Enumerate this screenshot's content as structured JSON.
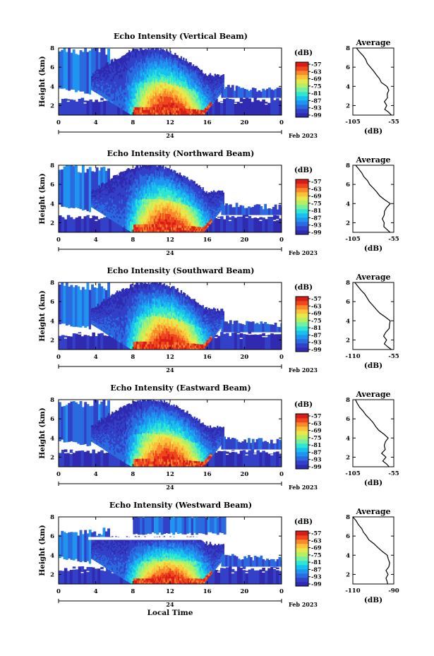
{
  "colorbar": {
    "unit": "(dB)",
    "labels": [
      "-57",
      "-63",
      "-69",
      "-75",
      "-81",
      "-87",
      "-93",
      "-99"
    ],
    "colors": [
      "#2f2ab0",
      "#3340c8",
      "#2a6be0",
      "#1f95f0",
      "#19c0ee",
      "#2ee6d2",
      "#74f0a0",
      "#b4f064",
      "#e6e84c",
      "#fbc23a",
      "#f98a2c",
      "#f0461e",
      "#d81c18"
    ]
  },
  "shared": {
    "date_label": "Feb 2023",
    "day_marker": "24",
    "xlabel": "Local Time",
    "ylabel": "Height (km)",
    "profile_title": "Average",
    "profile_xlabel": "(dB)"
  },
  "chart_data": [
    {
      "type": "heatmap",
      "title": "Echo Intensity (Vertical Beam)",
      "x_ticks": [
        "0",
        "4",
        "8",
        "12",
        "16",
        "20",
        "0"
      ],
      "y_ticks": [
        "2",
        "4",
        "6",
        "8"
      ],
      "xlim": [
        0,
        24
      ],
      "ylim": [
        1,
        8
      ],
      "profile": {
        "x_ticks": [
          "-105",
          "-55"
        ],
        "xlim": [
          -105,
          -55
        ],
        "y_ticks": [
          "2",
          "4",
          "6",
          "8"
        ],
        "ylim": [
          1,
          8
        ],
        "height": [
          1.0,
          1.3,
          1.6,
          2.0,
          2.4,
          2.8,
          3.2,
          3.6,
          4.0,
          4.4,
          4.8,
          5.2,
          5.6,
          6.0,
          6.4,
          6.8,
          7.2,
          7.6,
          8.0
        ],
        "value": [
          -58,
          -62,
          -66,
          -64,
          -66,
          -62,
          -63,
          -61,
          -64,
          -70,
          -73,
          -76,
          -80,
          -84,
          -87,
          -90,
          -93,
          -97,
          -101
        ]
      }
    },
    {
      "type": "heatmap",
      "title": "Echo Intensity (Northward Beam)",
      "x_ticks": [
        "0",
        "4",
        "8",
        "12",
        "16",
        "20",
        "0"
      ],
      "y_ticks": [
        "2",
        "4",
        "6",
        "8"
      ],
      "xlim": [
        0,
        24
      ],
      "ylim": [
        1,
        8
      ],
      "profile": {
        "x_ticks": [
          "-105",
          "-55"
        ],
        "xlim": [
          -105,
          -55
        ],
        "y_ticks": [
          "2",
          "4",
          "6",
          "8"
        ],
        "ylim": [
          1,
          8
        ],
        "height": [
          1.0,
          1.3,
          1.6,
          2.0,
          2.4,
          2.8,
          3.2,
          3.6,
          4.0,
          4.4,
          4.8,
          5.2,
          5.6,
          6.0,
          6.4,
          6.8,
          7.2,
          7.6,
          8.0
        ],
        "value": [
          -60,
          -64,
          -68,
          -66,
          -69,
          -67,
          -66,
          -63,
          -60,
          -66,
          -72,
          -76,
          -80,
          -84,
          -88,
          -91,
          -94,
          -98,
          -101
        ]
      }
    },
    {
      "type": "heatmap",
      "title": "Echo Intensity (Southward Beam)",
      "x_ticks": [
        "0",
        "4",
        "8",
        "12",
        "16",
        "20",
        "0"
      ],
      "y_ticks": [
        "2",
        "4",
        "6",
        "8"
      ],
      "xlim": [
        0,
        24
      ],
      "ylim": [
        1,
        8
      ],
      "profile": {
        "x_ticks": [
          "-110",
          "-55"
        ],
        "xlim": [
          -110,
          -55
        ],
        "y_ticks": [
          "2",
          "4",
          "6",
          "8"
        ],
        "ylim": [
          1,
          8
        ],
        "height": [
          1.0,
          1.3,
          1.6,
          2.0,
          2.4,
          2.8,
          3.2,
          3.6,
          4.0,
          4.4,
          4.8,
          5.2,
          5.6,
          6.0,
          6.4,
          6.8,
          7.2,
          7.6,
          8.0
        ],
        "value": [
          -58,
          -63,
          -68,
          -64,
          -69,
          -65,
          -62,
          -61,
          -59,
          -66,
          -73,
          -78,
          -83,
          -87,
          -91,
          -95,
          -99,
          -103,
          -107
        ]
      }
    },
    {
      "type": "heatmap",
      "title": "Echo Intensity (Eastward Beam)",
      "x_ticks": [
        "0",
        "4",
        "8",
        "12",
        "16",
        "20",
        "0"
      ],
      "y_ticks": [
        "2",
        "4",
        "6",
        "8"
      ],
      "xlim": [
        0,
        24
      ],
      "ylim": [
        1,
        8
      ],
      "profile": {
        "x_ticks": [
          "-105",
          "-55"
        ],
        "xlim": [
          -105,
          -55
        ],
        "y_ticks": [
          "2",
          "4",
          "6",
          "8"
        ],
        "ylim": [
          1,
          8
        ],
        "height": [
          1.0,
          1.3,
          1.6,
          2.0,
          2.4,
          2.8,
          3.2,
          3.6,
          4.0,
          4.4,
          4.8,
          5.2,
          5.6,
          6.0,
          6.4,
          6.8,
          7.2,
          7.6,
          8.0
        ],
        "value": [
          -60,
          -64,
          -68,
          -65,
          -69,
          -66,
          -67,
          -65,
          -61,
          -67,
          -73,
          -77,
          -81,
          -85,
          -89,
          -93,
          -96,
          -99,
          -102
        ]
      }
    },
    {
      "type": "heatmap",
      "title": "Echo Intensity (Westward Beam)",
      "x_ticks": [
        "0",
        "4",
        "8",
        "12",
        "16",
        "20",
        "0"
      ],
      "y_ticks": [
        "2",
        "4",
        "6",
        "8"
      ],
      "xlim": [
        0,
        24
      ],
      "ylim": [
        1,
        8
      ],
      "profile": {
        "x_ticks": [
          "-110",
          "-90"
        ],
        "xlim": [
          -110,
          -80
        ],
        "y_ticks": [
          "2",
          "4",
          "6",
          "8"
        ],
        "ylim": [
          1,
          8
        ],
        "height": [
          1.0,
          1.3,
          1.6,
          2.0,
          2.4,
          2.8,
          3.2,
          3.6,
          4.0,
          4.4,
          4.8,
          5.2,
          5.6,
          6.0,
          6.4,
          6.8,
          7.2,
          7.6,
          8.0
        ],
        "value": [
          -84,
          -85,
          -86,
          -84,
          -86,
          -84,
          -83,
          -84,
          -85,
          -88,
          -92,
          -95,
          -98,
          -100,
          -102,
          -104,
          -106,
          -108,
          -110
        ]
      }
    }
  ]
}
